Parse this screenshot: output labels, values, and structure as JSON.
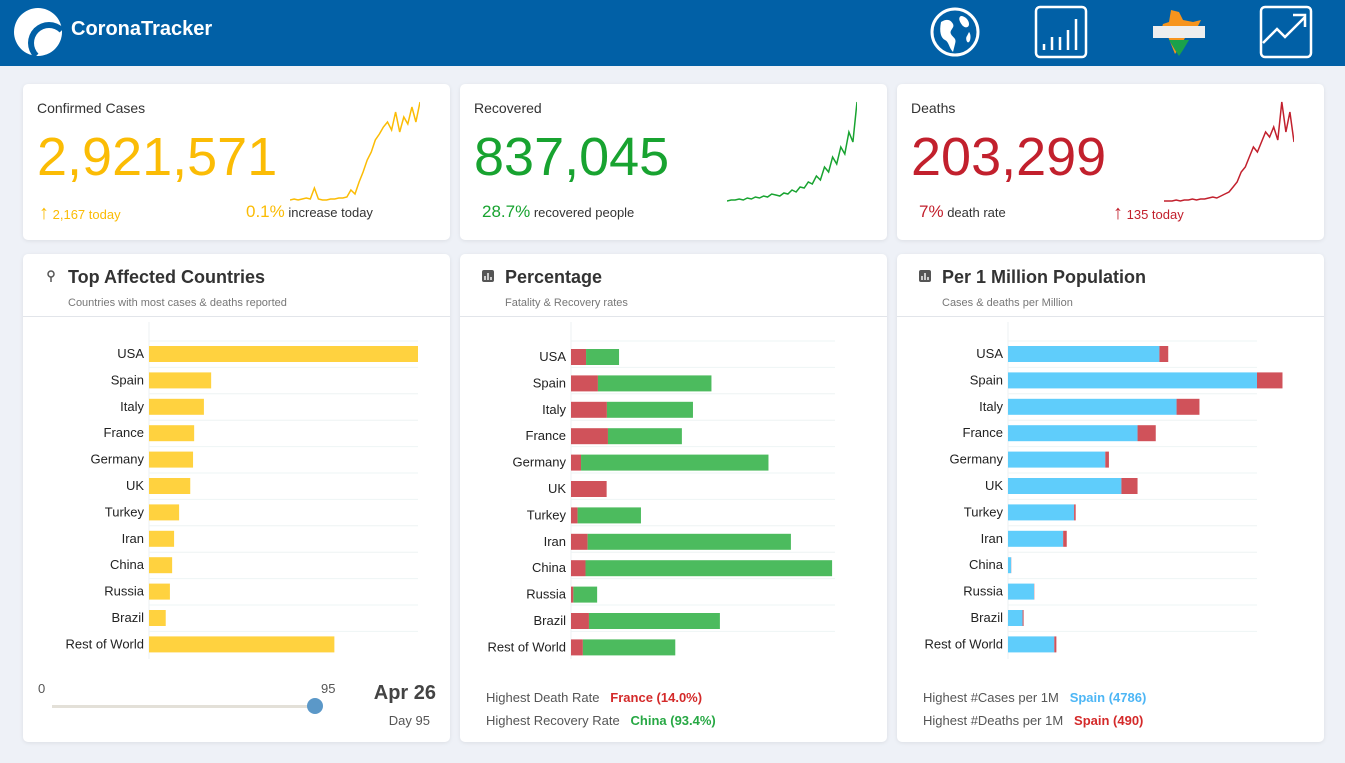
{
  "header": {
    "brand": "CoronaTracker",
    "nav": [
      "globe-icon",
      "bar-chart-icon",
      "india-map-icon",
      "trend-line-icon"
    ]
  },
  "stats": {
    "confirmed": {
      "title": "Confirmed Cases",
      "value": "2,921,571",
      "today": "2,167 today",
      "pct": "0.1%",
      "pct_label": "increase today",
      "color": "#fbbc05",
      "sparkline": [
        2,
        3,
        2,
        3,
        4,
        3,
        14,
        3,
        2,
        2,
        3,
        3,
        4,
        4,
        5,
        12,
        8,
        20,
        30,
        42,
        50,
        62,
        68,
        75,
        80,
        72,
        90,
        70,
        85,
        78,
        95,
        80,
        100
      ]
    },
    "recovered": {
      "title": "Recovered",
      "value": "837,045",
      "pct": "28.7%",
      "pct_label": "recovered people",
      "color": "#18a330",
      "sparkline": [
        1,
        2,
        2,
        3,
        2,
        4,
        3,
        5,
        4,
        6,
        5,
        8,
        7,
        6,
        9,
        8,
        12,
        10,
        15,
        14,
        20,
        18,
        26,
        22,
        35,
        30,
        45,
        38,
        55,
        48,
        70,
        60,
        100
      ]
    },
    "deaths": {
      "title": "Deaths",
      "value": "203,299",
      "pct": "7%",
      "pct_label": "death rate",
      "today": "135 today",
      "color": "#c2202d",
      "sparkline": [
        1,
        1,
        1,
        2,
        1,
        2,
        2,
        3,
        2,
        3,
        3,
        4,
        5,
        4,
        6,
        8,
        10,
        15,
        20,
        30,
        35,
        45,
        55,
        50,
        60,
        70,
        65,
        75,
        62,
        100,
        70,
        90,
        60
      ]
    }
  },
  "top": {
    "title": "Top Affected Countries",
    "subtitle": "Countries with most cases & deaths reported",
    "color": "#ffd23f",
    "chart_data": {
      "type": "bar",
      "categories": [
        "USA",
        "Spain",
        "Italy",
        "France",
        "Germany",
        "UK",
        "Turkey",
        "Iran",
        "China",
        "Russia",
        "Brazil",
        "Rest of World"
      ],
      "values": [
        965000,
        223000,
        197000,
        162000,
        158000,
        148000,
        108000,
        90000,
        83000,
        75000,
        60000,
        665000
      ]
    },
    "slider": {
      "min": "0",
      "max": "95",
      "value": 95
    },
    "date": "Apr 26",
    "day": "Day 95"
  },
  "percentage": {
    "title": "Percentage",
    "subtitle": "Fatality & Recovery rates",
    "chart_data": {
      "type": "bar",
      "stacked": true,
      "categories": [
        "USA",
        "Spain",
        "Italy",
        "France",
        "Germany",
        "UK",
        "Turkey",
        "Iran",
        "China",
        "Russia",
        "Brazil",
        "Rest of World"
      ],
      "series": [
        {
          "key": "fatality",
          "color": "#d0525a",
          "values": [
            5.7,
            10.2,
            13.6,
            14.0,
            3.8,
            13.5,
            2.5,
            6.3,
            5.5,
            0.9,
            6.8,
            4.5
          ]
        },
        {
          "key": "recovery",
          "color": "#4cbb5e",
          "values": [
            12.5,
            43,
            32.6,
            28,
            71,
            0,
            24,
            77,
            93.4,
            9,
            49.6,
            35
          ]
        }
      ],
      "xlim": [
        0,
        100
      ]
    },
    "footer": [
      {
        "label": "Highest Death Rate",
        "value": "France (14.0%)",
        "color": "#d42a2a"
      },
      {
        "label": "Highest Recovery Rate",
        "value": "China (93.4%)",
        "color": "#27a844"
      }
    ]
  },
  "permillion": {
    "title": "Per 1 Million Population",
    "subtitle": "Cases & deaths per Million",
    "chart_data": {
      "type": "bar",
      "stacked": true,
      "categories": [
        "USA",
        "Spain",
        "Italy",
        "France",
        "Germany",
        "UK",
        "Turkey",
        "Iran",
        "China",
        "Russia",
        "Brazil",
        "Rest of World"
      ],
      "series": [
        {
          "key": "cases",
          "color": "#5fcdfb",
          "values": [
            2910,
            4786,
            3240,
            2490,
            1870,
            2180,
            1270,
            1060,
            60,
            500,
            280,
            890
          ]
        },
        {
          "key": "deaths",
          "color": "#d0525a",
          "values": [
            170,
            490,
            440,
            350,
            70,
            310,
            31,
            69,
            3,
            5,
            20,
            40
          ]
        }
      ]
    },
    "footer": [
      {
        "label": "Highest #Cases per 1M",
        "value": "Spain (4786)",
        "color": "#4db6f5"
      },
      {
        "label": "Highest #Deaths per 1M",
        "value": "Spain (490)",
        "color": "#d42a2a"
      }
    ]
  }
}
